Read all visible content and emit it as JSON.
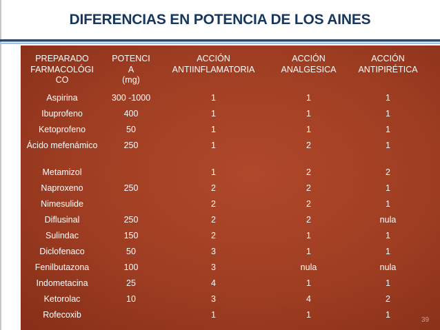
{
  "title": "DIFERENCIAS EN POTENCIA DE LOS AINES",
  "table": {
    "headers": [
      "PREPARADO FARMACOLÓGICO",
      "POTENCIA (mg)",
      "ACCIÓN ANTIINFLAMATORIA",
      "ACCIÓN ANALGESICA",
      "ACCIÓN ANTIPIRÉTICA"
    ],
    "header_lines": [
      [
        "PREPARADO",
        "FARMACOLÓGI",
        "CO"
      ],
      [
        "POTENCI",
        "A",
        "(mg)"
      ],
      [
        "ACCIÓN",
        "ANTIINFLAMATORIA"
      ],
      [
        "ACCIÓN",
        "ANALGESICA"
      ],
      [
        "ACCIÓN",
        "ANTIPIRÉTICA"
      ]
    ],
    "rows": [
      [
        "Aspirina",
        "300 -1000",
        "1",
        "1",
        "1"
      ],
      [
        "Ibuprofeno",
        "400",
        "1",
        "1",
        "1"
      ],
      [
        "Ketoprofeno",
        "50",
        "1",
        "1",
        "1"
      ],
      [
        "Ácido mefenámico",
        "250",
        "1",
        "2",
        "1"
      ],
      [
        "Metamizol",
        "",
        "1",
        "2",
        "2"
      ],
      [
        "Naproxeno",
        "250",
        "2",
        "2",
        "1"
      ],
      [
        "Nimesulide",
        "",
        "2",
        "2",
        "1"
      ],
      [
        "Diflusinal",
        "250",
        "2",
        "2",
        "nula"
      ],
      [
        "Sulindac",
        "150",
        "2",
        "1",
        "1"
      ],
      [
        "Diclofenaco",
        "50",
        "3",
        "1",
        "1"
      ],
      [
        "Fenilbutazona",
        "100",
        "3",
        "nula",
        "nula"
      ],
      [
        "Indometacina",
        "25",
        "4",
        "1",
        "1"
      ],
      [
        "Ketorolac",
        "10",
        "3",
        "4",
        "2"
      ],
      [
        "Rofecoxib",
        "",
        "1",
        "1",
        "1"
      ]
    ]
  },
  "slide_number": "39",
  "colors": {
    "title": "#17375e",
    "panel": "#9e3d22",
    "accent_line_dark": "#1f4e79",
    "accent_line_light": "#9dc3e6",
    "table_text": "#ffffff"
  }
}
